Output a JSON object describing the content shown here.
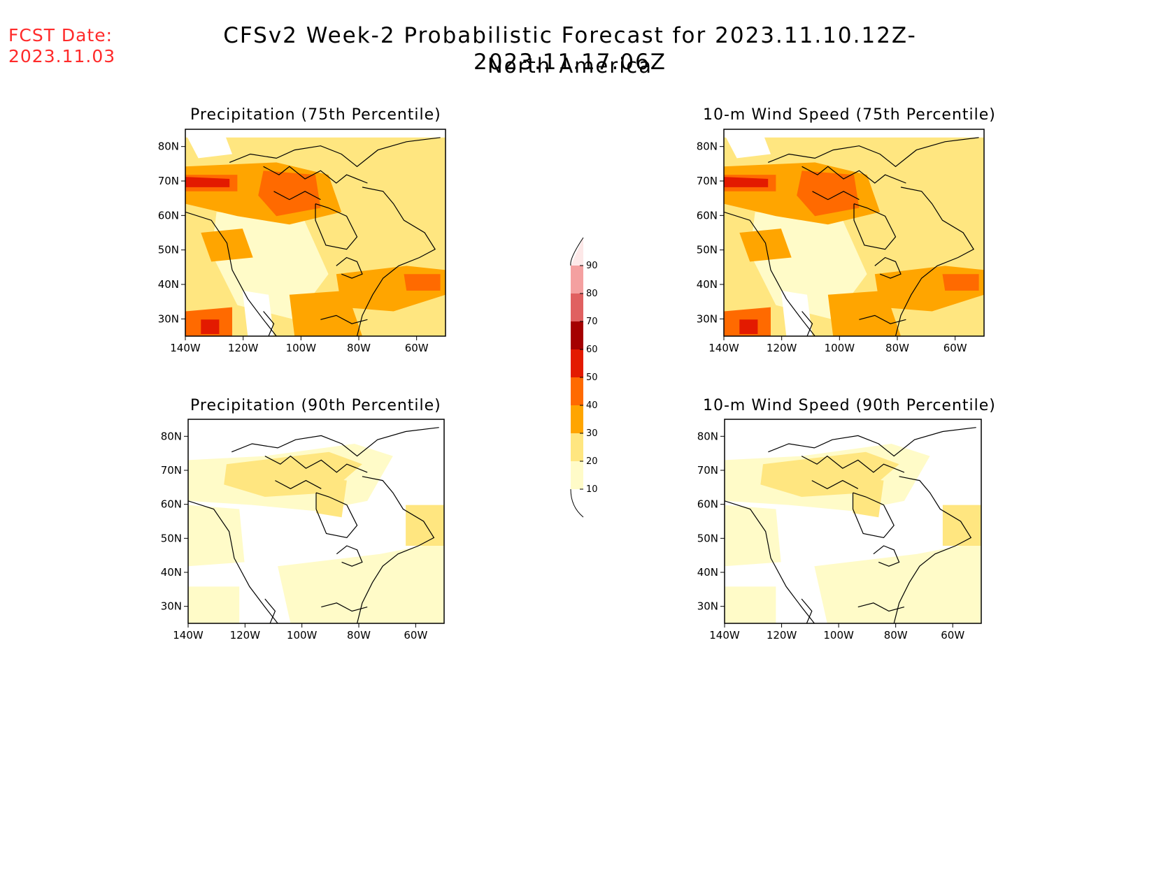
{
  "fcst_date": {
    "line1": "FCST Date:",
    "line2": "2023.11.03"
  },
  "title": "CFSv2 Week-2 Probabilistic Forecast for 2023.11.10.12Z-2023.11.17.06Z",
  "subtitle": "North America",
  "colors": {
    "c10": "#fffbc8",
    "c20": "#ffe680",
    "c30": "#ffa500",
    "c40": "#ff6a00",
    "c50": "#e31a00",
    "c60": "#a50000",
    "c70": "#e06060",
    "c80": "#f4a0a0",
    "c90": "#fde8e8"
  },
  "colorbar": {
    "levels": [
      "10",
      "20",
      "30",
      "40",
      "50",
      "60",
      "70",
      "80",
      "90"
    ]
  },
  "lat_ticks": [
    "80N",
    "70N",
    "60N",
    "50N",
    "40N",
    "30N"
  ],
  "lon_ticks": [
    "140W",
    "120W",
    "100W",
    "80W",
    "60W"
  ],
  "panels": [
    {
      "id": "precip75",
      "title": "Precipitation (75th Percentile)",
      "intensity": "high"
    },
    {
      "id": "wind75",
      "title": "10-m Wind Speed (75th Percentile)",
      "intensity": "high"
    },
    {
      "id": "precip90",
      "title": "Precipitation (90th Percentile)",
      "intensity": "low"
    },
    {
      "id": "wind90",
      "title": "10-m Wind Speed (90th Percentile)",
      "intensity": "low"
    }
  ]
}
